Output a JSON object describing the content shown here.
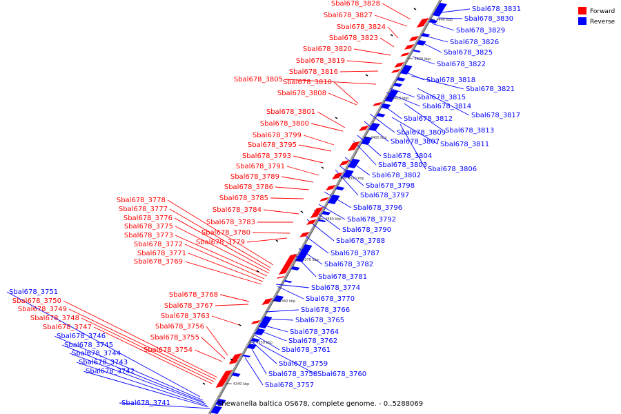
{
  "caption": "Shewanella baltica OS678, complete genome. - 0..5288069",
  "legend": [
    {
      "label": "Forward",
      "color": "#ff0000"
    },
    {
      "label": "Reverse",
      "color": "#0000ff"
    }
  ],
  "ticks": [
    "4440 kbp",
    "4420 kbp",
    "4410 kbp",
    "4400 kbp",
    "4390 kbp",
    "4380 kbp",
    "4370 kbp",
    "4360 kbp",
    "4350 kbp",
    "4340 kbp"
  ],
  "forward_genes": [
    "Sbal678_3828",
    "Sbal678_3827",
    "Sbal678_3824",
    "Sbal678_3823",
    "Sbal678_3820",
    "Sbal678_3819",
    "Sbal678_3816",
    "Sbal678_3805",
    "Sbal678_3810",
    "Sbal678_3808",
    "Sbal678_3801",
    "Sbal678_3800",
    "Sbal678_3799",
    "Sbal678_3795",
    "Sbal678_3793",
    "Sbal678_3791",
    "Sbal678_3789",
    "Sbal678_3786",
    "Sbal678_3785",
    "Sbal678_3778",
    "Sbal678_3777",
    "Sbal678_3784",
    "Sbal678_3776",
    "Sbal678_3783",
    "Sbal678_3775",
    "Sbal678_3780",
    "Sbal678_3773",
    "Sbal678_3779",
    "Sbal678_3772",
    "Sbal678_3771",
    "Sbal678_3769",
    "Sbal678_3768",
    "Sbal678_3767",
    "Sbal678_3763",
    "Sbal678_3756",
    "Sbal678_3755",
    "Sbal678_3754",
    "Sbal678_3750",
    "Sbal678_3749",
    "Sbal678_3748",
    "Sbal678_3747"
  ],
  "reverse_genes": [
    "Sbal678_3831",
    "Sbal678_3830",
    "Sbal678_3829",
    "Sbal678_3826",
    "Sbal678_3825",
    "Sbal678_3822",
    "Sbal678_3818",
    "Sbal678_3821",
    "Sbal678_3815",
    "Sbal678_3814",
    "Sbal678_3817",
    "Sbal678_3812",
    "Sbal678_3813",
    "Sbal678_3809",
    "Sbal678_3807",
    "Sbal678_3811",
    "Sbal678_3804",
    "Sbal678_3803",
    "Sbal678_3806",
    "Sbal678_3802",
    "Sbal678_3798",
    "Sbal678_3797",
    "Sbal678_3796",
    "Sbal678_3792",
    "Sbal678_3790",
    "Sbal678_3788",
    "Sbal678_3787",
    "Sbal678_3782",
    "Sbal678_3781",
    "Sbal678_3774",
    "Sbal678_3770",
    "Sbal678_3766",
    "Sbal678_3765",
    "Sbal678_3764",
    "Sbal678_3762",
    "Sbal678_3761",
    "Sbal678_3759",
    "Sbal678_3758",
    "Sbal678_3760",
    "Sbal678_3757",
    "Sbal678_3751",
    "Sbal678_3746",
    "Sbal678_3745",
    "Sbal678_3744",
    "Sbal678_3743",
    "Sbal678_3742",
    "Sbal678_3741"
  ]
}
